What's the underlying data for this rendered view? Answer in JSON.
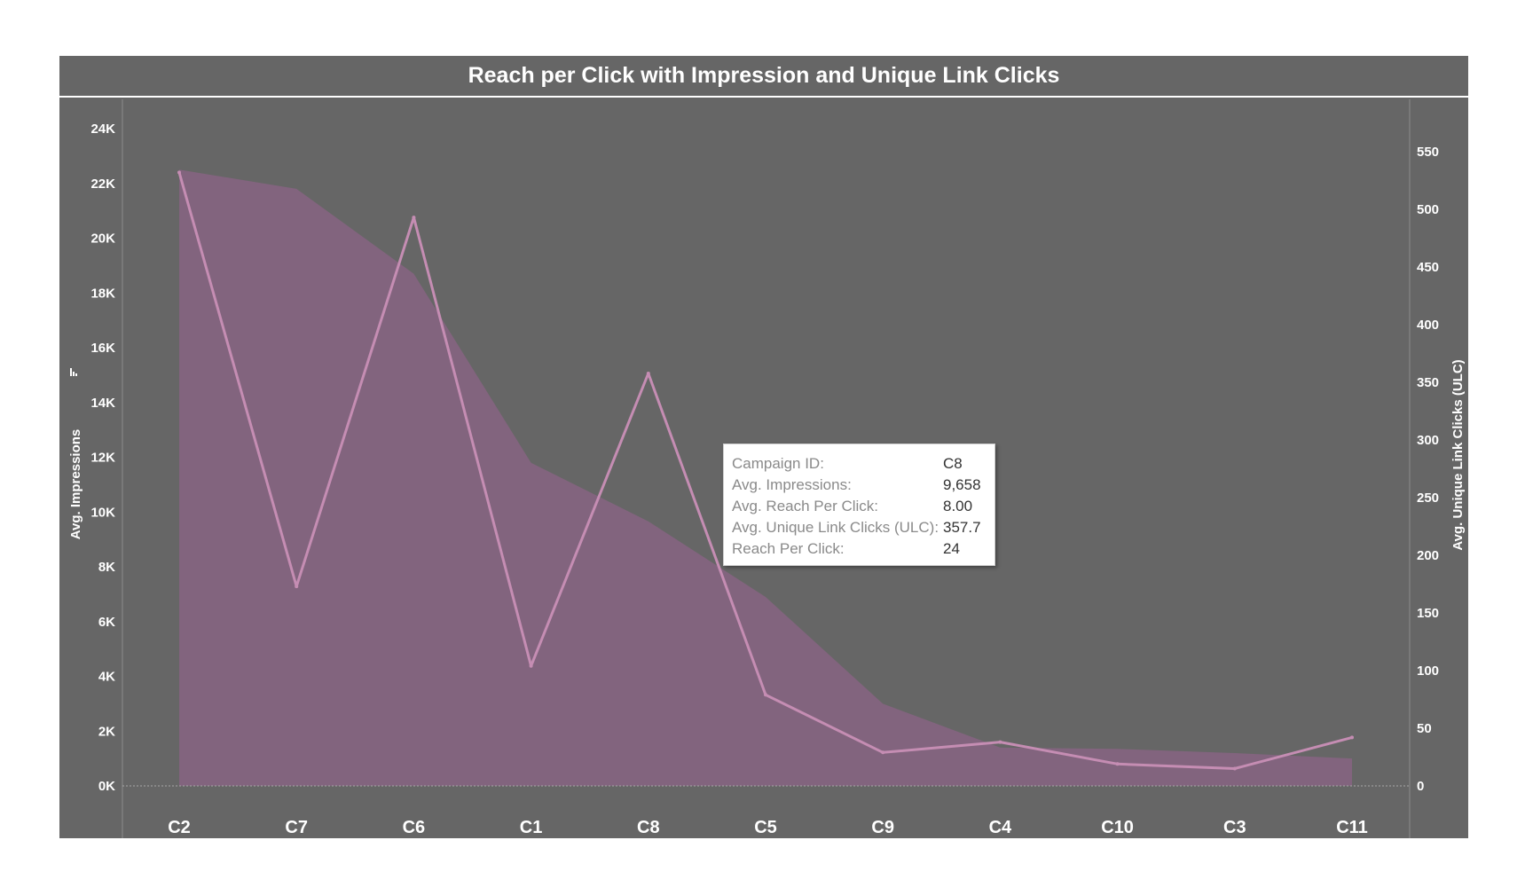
{
  "chart_data": {
    "type": "area",
    "title": "Reach per Click with Impression and Unique Link Clicks",
    "categories": [
      "C2",
      "C7",
      "C6",
      "C1",
      "C8",
      "C5",
      "C9",
      "C4",
      "C10",
      "C3",
      "C11"
    ],
    "series": [
      {
        "name": "Avg. Impressions",
        "type": "area",
        "axis": "left",
        "values": [
          22500,
          21800,
          18700,
          11800,
          9658,
          6900,
          3000,
          1400,
          1350,
          1200,
          1000
        ]
      },
      {
        "name": "Avg. Unique Link Clicks (ULC)",
        "type": "line",
        "axis": "right",
        "values": [
          532,
          173,
          493,
          104,
          357.7,
          79,
          29,
          38,
          19,
          15,
          42
        ]
      }
    ],
    "y_left": {
      "label": "Avg. Impressions",
      "min": 0,
      "max": 24000,
      "ticks": [
        "0K",
        "2K",
        "4K",
        "6K",
        "8K",
        "10K",
        "12K",
        "14K",
        "16K",
        "18K",
        "20K",
        "22K",
        "24K"
      ]
    },
    "y_right": {
      "label": "Avg. Unique Link Clicks (ULC)",
      "min": 0,
      "max": 550,
      "ticks": [
        "0",
        "50",
        "100",
        "150",
        "200",
        "250",
        "300",
        "350",
        "400",
        "450",
        "500",
        "550"
      ]
    },
    "colors": {
      "area": "#82647e",
      "line": "#c58db3",
      "background": "#666666"
    },
    "grid": false
  },
  "tooltip": {
    "rows": [
      {
        "label": "Campaign ID:",
        "value": "C8"
      },
      {
        "label": "Avg. Impressions:",
        "value": "9,658"
      },
      {
        "label": "Avg. Reach Per Click:",
        "value": "8.00"
      },
      {
        "label": "Avg. Unique Link Clicks (ULC):",
        "value": "357.7"
      },
      {
        "label": "Reach Per Click:",
        "value": "24"
      }
    ]
  }
}
